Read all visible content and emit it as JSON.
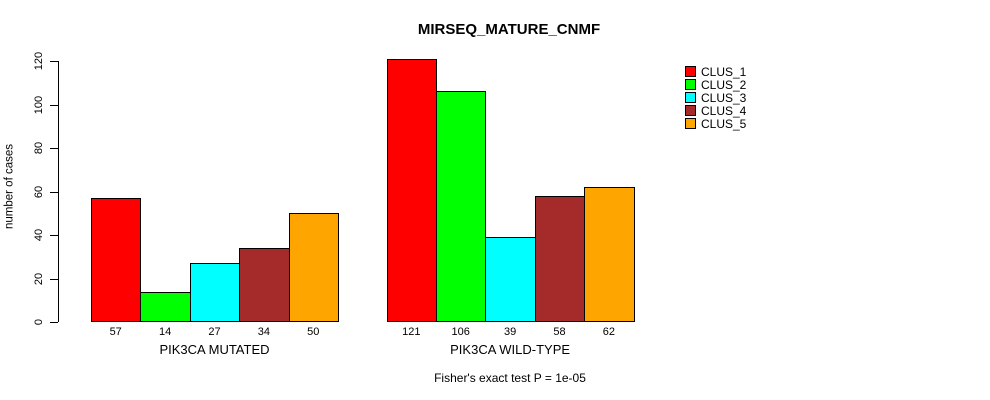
{
  "chart_data": {
    "type": "bar",
    "title": "MIRSEQ_MATURE_CNMF",
    "xlabel": "",
    "ylabel": "number of cases",
    "ylim": [
      0,
      120
    ],
    "yticks": [
      0,
      20,
      40,
      60,
      80,
      100,
      120
    ],
    "grid": false,
    "legend_position": "top-right",
    "categories": [
      "PIK3CA MUTATED",
      "PIK3CA WILD-TYPE"
    ],
    "series": [
      {
        "name": "CLUS_1",
        "color": "#ff0000",
        "values": [
          57,
          121
        ]
      },
      {
        "name": "CLUS_2",
        "color": "#00ff00",
        "values": [
          14,
          106
        ]
      },
      {
        "name": "CLUS_3",
        "color": "#00ffff",
        "values": [
          27,
          39
        ]
      },
      {
        "name": "CLUS_4",
        "color": "#a52a2a",
        "values": [
          34,
          58
        ]
      },
      {
        "name": "CLUS_5",
        "color": "#ffa500",
        "values": [
          50,
          62
        ]
      }
    ],
    "show_bar_values": true,
    "caption": "Fisher's exact test P = 1e-05"
  }
}
